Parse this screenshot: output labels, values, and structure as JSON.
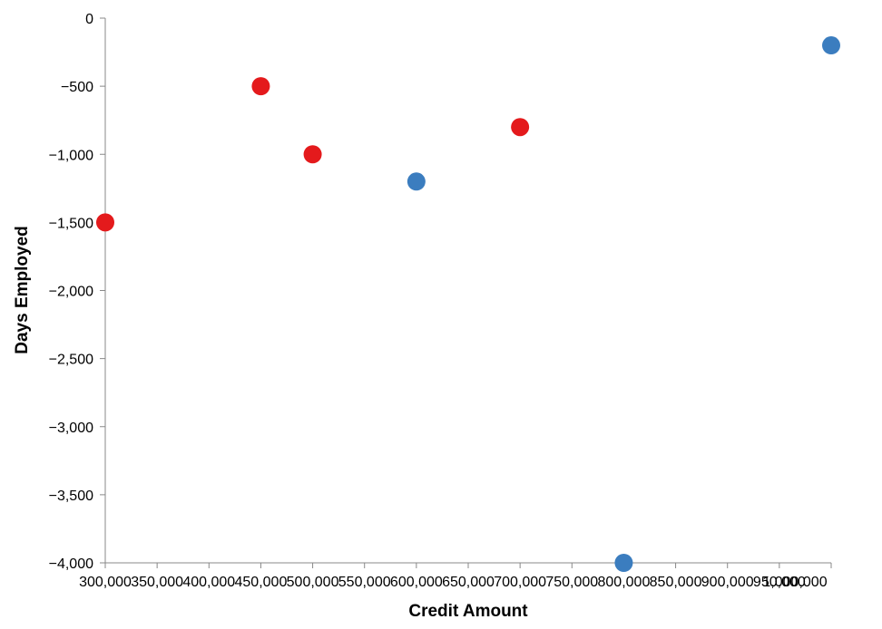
{
  "chart_data": {
    "type": "scatter",
    "xlabel": "Credit Amount",
    "ylabel": "Days Employed",
    "xlim": [
      300000,
      1000000
    ],
    "ylim": [
      -4000,
      0
    ],
    "x_ticks": [
      300000,
      350000,
      400000,
      450000,
      500000,
      550000,
      600000,
      650000,
      700000,
      750000,
      800000,
      850000,
      900000,
      950000,
      1000000
    ],
    "x_tick_labels": [
      "300,000",
      "350,000",
      "400,000",
      "450,000",
      "500,000",
      "550,000",
      "600,000",
      "650,000",
      "700,000",
      "750,000",
      "800,000",
      "850,000",
      "900,000",
      "950,000",
      "1,000,000"
    ],
    "y_ticks": [
      0,
      -500,
      -1000,
      -1500,
      -2000,
      -2500,
      -3000,
      -3500,
      -4000
    ],
    "y_tick_labels": [
      "0",
      "−500",
      "−1,000",
      "−1,500",
      "−2,000",
      "−2,500",
      "−3,000",
      "−3,500",
      "−4,000"
    ],
    "grid": false,
    "legend": "none",
    "colors": {
      "blue": "#3b7dbf",
      "red": "#e41a1c",
      "axis": "#888888"
    },
    "points": [
      {
        "x": 300000,
        "y": -1500,
        "color": "red"
      },
      {
        "x": 450000,
        "y": -500,
        "color": "red"
      },
      {
        "x": 500000,
        "y": -1000,
        "color": "red"
      },
      {
        "x": 600000,
        "y": -1200,
        "color": "blue"
      },
      {
        "x": 700000,
        "y": -800,
        "color": "red"
      },
      {
        "x": 800000,
        "y": -4000,
        "color": "blue"
      },
      {
        "x": 1000000,
        "y": -200,
        "color": "blue"
      }
    ]
  }
}
